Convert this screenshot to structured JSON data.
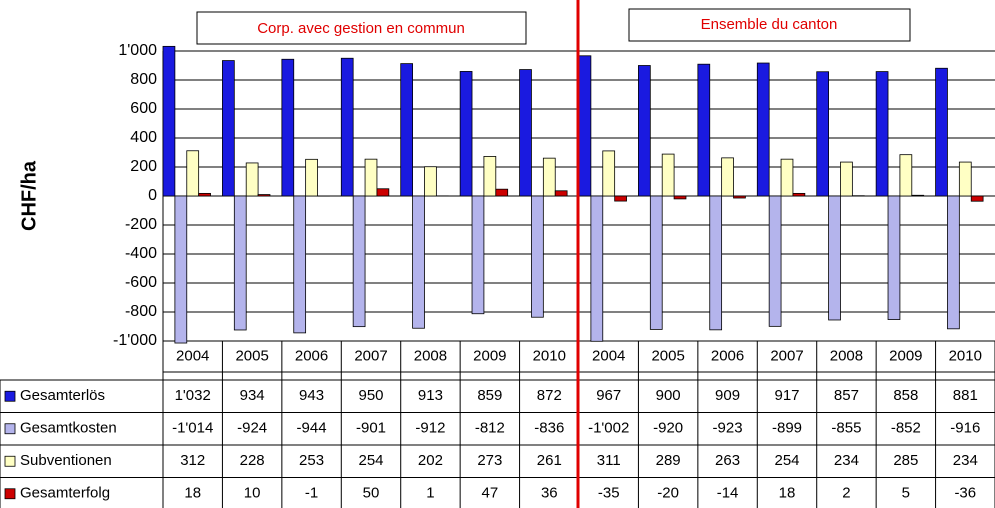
{
  "chart_data": {
    "type": "bar",
    "y_label": "CHF/ha",
    "groups": [
      {
        "label": "Corp. avec gestion en commun"
      },
      {
        "label": "Ensemble du canton"
      }
    ],
    "categories": [
      "2004",
      "2005",
      "2006",
      "2007",
      "2008",
      "2009",
      "2010",
      "2004",
      "2005",
      "2006",
      "2007",
      "2008",
      "2009",
      "2010"
    ],
    "series": [
      {
        "name": "Gesamterlös",
        "color": "#1a1ae0",
        "values": [
          1032,
          934,
          943,
          950,
          913,
          859,
          872,
          967,
          900,
          909,
          917,
          857,
          858,
          881
        ],
        "value_labels": [
          "1'032",
          "934",
          "943",
          "950",
          "913",
          "859",
          "872",
          "967",
          "900",
          "909",
          "917",
          "857",
          "858",
          "881"
        ]
      },
      {
        "name": "Gesamtkosten",
        "color": "#b4b4ec",
        "values": [
          -1014,
          -924,
          -944,
          -901,
          -912,
          -812,
          -836,
          -1002,
          -920,
          -923,
          -899,
          -855,
          -852,
          -916
        ],
        "value_labels": [
          "-1'014",
          "-924",
          "-944",
          "-901",
          "-912",
          "-812",
          "-836",
          "-1'002",
          "-920",
          "-923",
          "-899",
          "-855",
          "-852",
          "-916"
        ]
      },
      {
        "name": "Subventionen",
        "color": "#ffffc4",
        "values": [
          312,
          228,
          253,
          254,
          202,
          273,
          261,
          311,
          289,
          263,
          254,
          234,
          285,
          234
        ],
        "value_labels": [
          "312",
          "228",
          "253",
          "254",
          "202",
          "273",
          "261",
          "311",
          "289",
          "263",
          "254",
          "234",
          "285",
          "234"
        ]
      },
      {
        "name": "Gesamterfolg",
        "color": "#cc0000",
        "values": [
          18,
          10,
          -1,
          50,
          1,
          47,
          36,
          -35,
          -20,
          -14,
          18,
          2,
          5,
          -36
        ],
        "value_labels": [
          "18",
          "10",
          "-1",
          "50",
          "1",
          "47",
          "36",
          "-35",
          "-20",
          "-14",
          "18",
          "2",
          "5",
          "-36"
        ]
      }
    ],
    "ylim": [
      -1000,
      1000
    ],
    "yticks": [
      {
        "value": 1000,
        "label": "1'000"
      },
      800,
      600,
      400,
      200,
      0,
      -200,
      -400,
      -600,
      -800,
      {
        "value": -1000,
        "label": "-1'000"
      }
    ],
    "grid": true
  }
}
